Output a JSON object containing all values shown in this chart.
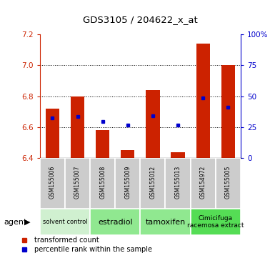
{
  "title": "GDS3105 / 204622_x_at",
  "samples": [
    "GSM155006",
    "GSM155007",
    "GSM155008",
    "GSM155009",
    "GSM155012",
    "GSM155013",
    "GSM154972",
    "GSM155005"
  ],
  "red_values": [
    6.72,
    6.8,
    6.58,
    6.45,
    6.84,
    6.44,
    7.14,
    7.0
  ],
  "blue_values": [
    6.66,
    6.67,
    6.635,
    6.615,
    6.675,
    6.615,
    6.79,
    6.73
  ],
  "ylim_left": [
    6.4,
    7.2
  ],
  "yticks_left": [
    6.4,
    6.6,
    6.8,
    7.0,
    7.2
  ],
  "yticks_right": [
    0,
    25,
    50,
    75,
    100
  ],
  "ylim_right": [
    0,
    100
  ],
  "bar_color": "#cc2200",
  "dot_color": "#0000cc",
  "plot_bg_color": "#ffffff",
  "base_value": 6.4,
  "groups": [
    {
      "label": "solvent control",
      "start": 0,
      "end": 2,
      "color": "#d0f0d0",
      "fontsize": 6
    },
    {
      "label": "estradiol",
      "start": 2,
      "end": 4,
      "color": "#90e890",
      "fontsize": 8
    },
    {
      "label": "tamoxifen",
      "start": 4,
      "end": 6,
      "color": "#90e890",
      "fontsize": 8
    },
    {
      "label": "Cimicifuga\nracemosa extract",
      "start": 6,
      "end": 8,
      "color": "#55dd55",
      "fontsize": 6.5
    }
  ]
}
